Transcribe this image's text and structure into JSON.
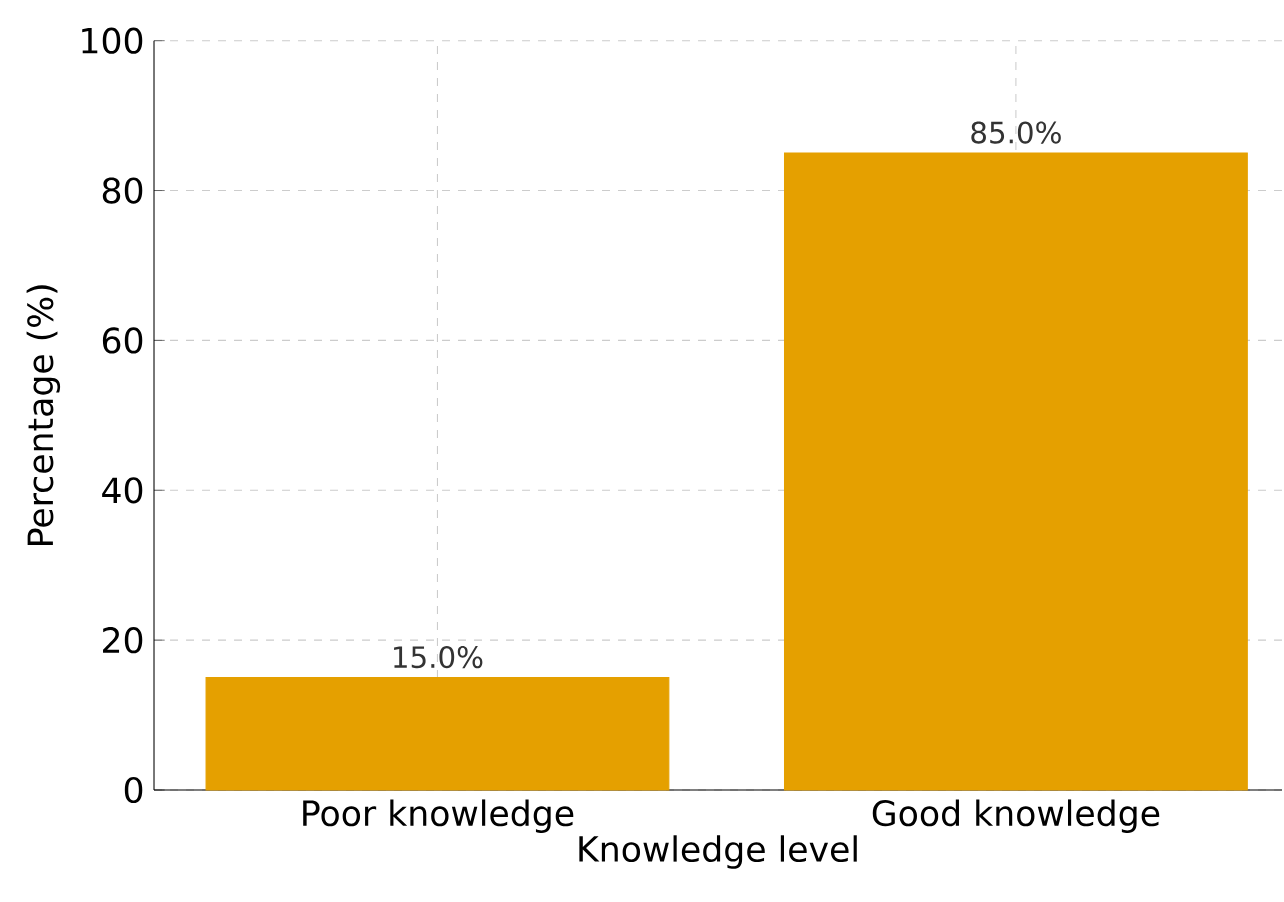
{
  "chart_data": {
    "type": "bar",
    "categories": [
      "Poor knowledge",
      "Good knowledge"
    ],
    "values": [
      15,
      85
    ],
    "value_labels": [
      "15.0%",
      "85.0%"
    ],
    "color": "#e5a000",
    "xlabel": "Knowledge level",
    "ylabel": "Percentage (%)",
    "ylim": [
      0,
      100
    ],
    "yticks": [
      0,
      20,
      40,
      60,
      80,
      100
    ],
    "grid": true
  }
}
